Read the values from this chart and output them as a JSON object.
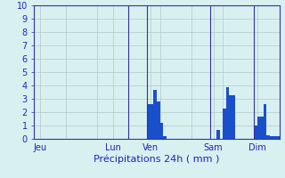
{
  "title": "",
  "xlabel": "Précipitations 24h ( mm )",
  "ylabel": "",
  "background_color": "#d8f0f0",
  "bar_color": "#1a4fcc",
  "grid_color": "#b0c8c8",
  "axis_label_color": "#2222bb",
  "tick_label_color": "#2222bb",
  "spine_color": "#3333aa",
  "ylim": [
    0,
    10
  ],
  "yticks": [
    0,
    1,
    2,
    3,
    4,
    5,
    6,
    7,
    8,
    9,
    10
  ],
  "day_labels": [
    "Jeu",
    "Lun",
    "Ven",
    "Sam",
    "Dim"
  ],
  "day_tick_positions": [
    2,
    25,
    37,
    57,
    71
  ],
  "num_bars": 80,
  "bar_values": [
    0,
    0,
    0,
    0,
    0,
    0,
    0,
    0,
    0,
    0,
    0,
    0,
    0,
    0,
    0,
    0,
    0,
    0,
    0,
    0,
    0,
    0,
    0,
    0,
    0,
    0,
    0,
    0,
    0,
    0,
    0,
    0,
    0,
    0,
    0,
    0,
    2.6,
    2.6,
    3.7,
    2.8,
    1.2,
    0.2,
    0,
    0,
    0,
    0,
    0,
    0,
    0,
    0,
    0,
    0,
    0,
    0,
    0,
    0,
    0,
    0,
    0.7,
    0,
    2.3,
    3.9,
    3.3,
    3.3,
    0,
    0,
    0,
    0,
    0,
    0,
    1.0,
    1.7,
    1.7,
    2.6,
    0.3,
    0.2,
    0.2,
    0.2
  ],
  "vline_positions": [
    30,
    36,
    56,
    70
  ],
  "vline_color": "#333399"
}
